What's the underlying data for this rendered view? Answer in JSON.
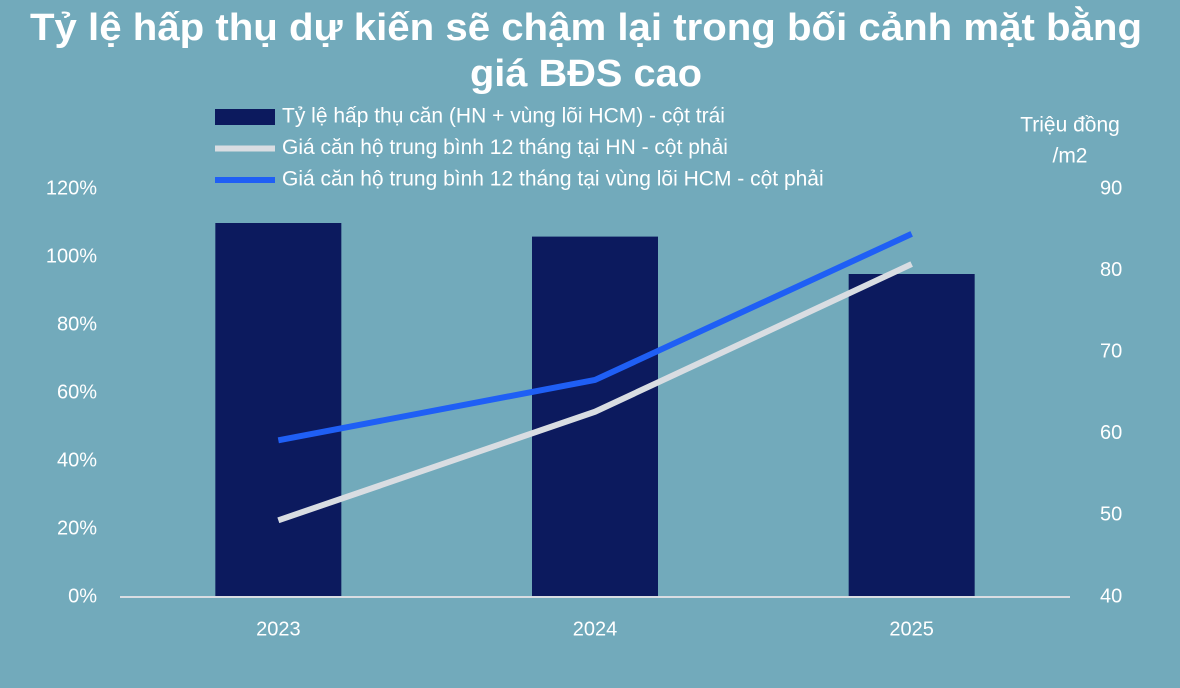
{
  "chart_data": {
    "type": "combo",
    "title": [
      "Tỷ lệ hấp thụ dự kiến sẽ chậm lại trong bối cảnh mặt bằng",
      "giá BĐS cao"
    ],
    "y2_label": [
      "Triệu đồng",
      "/m2"
    ],
    "categories": [
      "2023",
      "2024",
      "2025"
    ],
    "series": [
      {
        "name": "Tỷ lệ hấp thụ căn (HN + vùng lõi HCM) - cột trái",
        "type": "bar",
        "axis": "y",
        "color": "#0c1a5e",
        "values": [
          110,
          106,
          95
        ]
      },
      {
        "name": "Giá căn hộ trung bình 12 tháng tại HN - cột phải",
        "type": "line",
        "axis": "y2",
        "color": "#d9dde2",
        "values": [
          49.4,
          62.7,
          80.8
        ]
      },
      {
        "name": "Giá căn hộ trung bình 12 tháng tại vùng lõi HCM - cột phải",
        "type": "line",
        "axis": "y2",
        "color": "#1f5ff5",
        "values": [
          59.2,
          66.6,
          84.5
        ]
      }
    ],
    "ylim": [
      0,
      120
    ],
    "yticks": [
      {
        "value": 0,
        "label": "0%"
      },
      {
        "value": 20,
        "label": "20%"
      },
      {
        "value": 40,
        "label": "40%"
      },
      {
        "value": 60,
        "label": "60%"
      },
      {
        "value": 80,
        "label": "80%"
      },
      {
        "value": 100,
        "label": "100%"
      },
      {
        "value": 120,
        "label": "120%"
      }
    ],
    "y2lim": [
      40,
      90
    ],
    "y2ticks": [
      40,
      50,
      60,
      70,
      80,
      90
    ],
    "grid": false,
    "legend": "top-left"
  }
}
